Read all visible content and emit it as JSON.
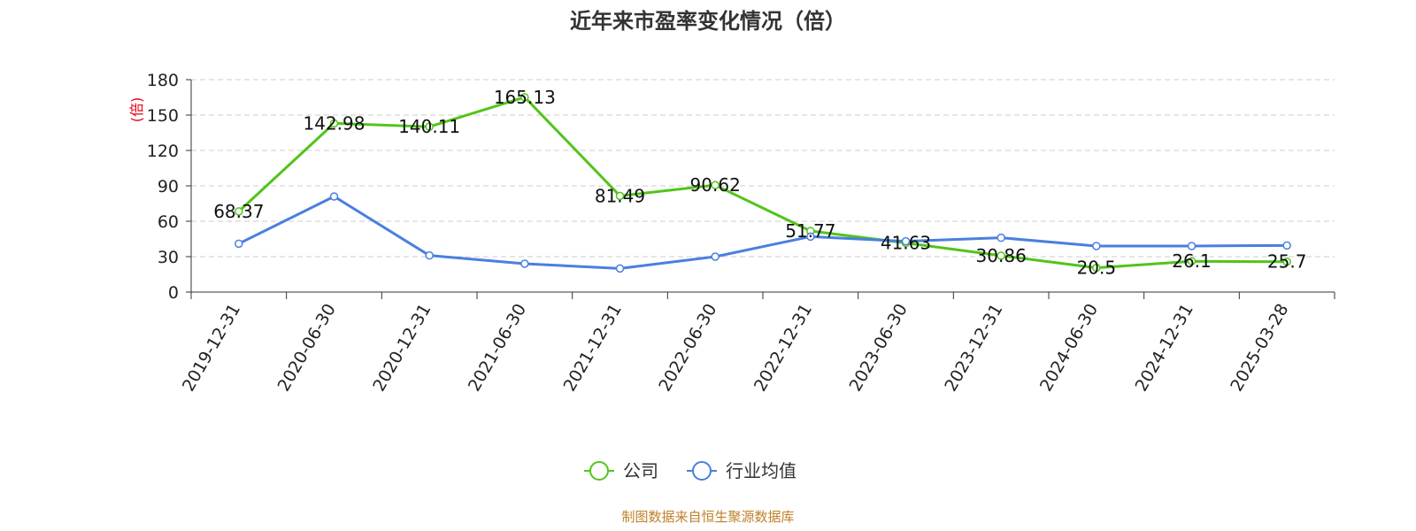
{
  "chart_data": {
    "type": "line",
    "title": "近年来市盈率变化情况（倍）",
    "ylabel": "(倍)",
    "xlabel": "",
    "ylim": [
      0,
      180
    ],
    "yticks": [
      0,
      30,
      60,
      90,
      120,
      150,
      180
    ],
    "grid": true,
    "legend_position": "bottom",
    "categories": [
      "2019-12-31",
      "2020-06-30",
      "2020-12-31",
      "2021-06-30",
      "2021-12-31",
      "2022-06-30",
      "2022-12-31",
      "2023-06-30",
      "2023-12-31",
      "2024-06-30",
      "2024-12-31",
      "2025-03-28"
    ],
    "series": [
      {
        "name": "公司",
        "color": "#52c41a",
        "values": [
          68.37,
          142.98,
          140.11,
          165.13,
          81.49,
          90.62,
          51.77,
          41.63,
          30.86,
          20.5,
          26.1,
          25.7
        ],
        "labels": [
          "68.37",
          "142.98",
          "140.11",
          "165.13",
          "81.49",
          "90.62",
          "51.77",
          "41.63",
          "30.86",
          "20.5",
          "26.1",
          "25.7"
        ]
      },
      {
        "name": "行业均值",
        "color": "#4a7fdf",
        "values": [
          41,
          81,
          31,
          24,
          20,
          30,
          47,
          43,
          46,
          39,
          39,
          39.5
        ]
      }
    ]
  },
  "source": "制图数据来自恒生聚源数据库"
}
